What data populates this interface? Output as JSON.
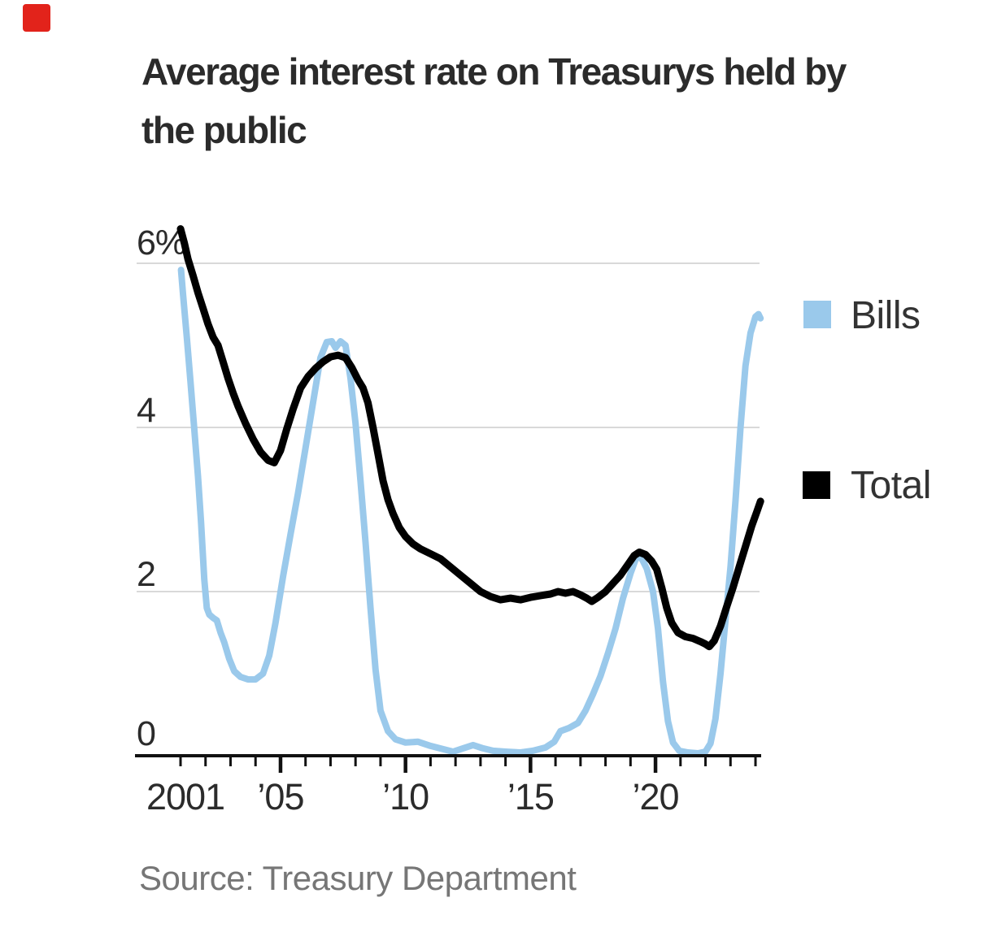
{
  "marker": {
    "color": "#e2231b"
  },
  "title": {
    "line1": "Average interest rate on Treasurys held by",
    "line2": "the public",
    "full": "Average interest rate on Treasurys held by the public"
  },
  "source_note": "Source: Treasury Department",
  "legend": [
    {
      "label": "Bills",
      "color": "#9ac9eb"
    },
    {
      "label": "Total",
      "color": "#000000"
    }
  ],
  "chart_data": {
    "type": "line",
    "title": "Average interest rate on Treasurys held by the public",
    "ylabel": "",
    "xlabel": "",
    "grid": true,
    "legend_position": "right",
    "y_axis": {
      "unit": "percent",
      "range": [
        0,
        6.5
      ],
      "ticks": [
        {
          "label": "6%",
          "value": 6
        },
        {
          "label": "4",
          "value": 4
        },
        {
          "label": "2",
          "value": 2
        },
        {
          "label": "0",
          "value": 0
        }
      ]
    },
    "x_axis": {
      "range": [
        2001,
        2024.3
      ],
      "year_start": 2001,
      "year_end": 2024,
      "major_tick_years": [
        2005,
        2010,
        2015,
        2020
      ],
      "ticks": [
        {
          "label": "2001",
          "year": 2001
        },
        {
          "label": "’05",
          "year": 2005
        },
        {
          "label": "’10",
          "year": 2010
        },
        {
          "label": "’15",
          "year": 2015
        },
        {
          "label": "’20",
          "year": 2020
        }
      ]
    },
    "series": [
      {
        "name": "Bills",
        "color": "#9ac9eb",
        "points": [
          [
            2001.02,
            5.92
          ],
          [
            2001.1,
            5.62
          ],
          [
            2001.25,
            5.1
          ],
          [
            2001.4,
            4.55
          ],
          [
            2001.55,
            3.98
          ],
          [
            2001.7,
            3.4
          ],
          [
            2001.82,
            2.85
          ],
          [
            2001.95,
            2.15
          ],
          [
            2002.05,
            1.8
          ],
          [
            2002.15,
            1.72
          ],
          [
            2002.3,
            1.68
          ],
          [
            2002.45,
            1.65
          ],
          [
            2002.6,
            1.5
          ],
          [
            2002.75,
            1.38
          ],
          [
            2002.95,
            1.18
          ],
          [
            2003.15,
            1.03
          ],
          [
            2003.4,
            0.96
          ],
          [
            2003.7,
            0.93
          ],
          [
            2004.0,
            0.93
          ],
          [
            2004.3,
            1.0
          ],
          [
            2004.55,
            1.22
          ],
          [
            2004.8,
            1.62
          ],
          [
            2005.1,
            2.18
          ],
          [
            2005.4,
            2.7
          ],
          [
            2005.7,
            3.2
          ],
          [
            2006.0,
            3.75
          ],
          [
            2006.3,
            4.3
          ],
          [
            2006.6,
            4.85
          ],
          [
            2006.85,
            5.04
          ],
          [
            2007.05,
            5.05
          ],
          [
            2007.2,
            4.97
          ],
          [
            2007.4,
            5.05
          ],
          [
            2007.6,
            5.0
          ],
          [
            2007.8,
            4.6
          ],
          [
            2008.0,
            4.05
          ],
          [
            2008.2,
            3.35
          ],
          [
            2008.4,
            2.6
          ],
          [
            2008.6,
            1.8
          ],
          [
            2008.8,
            1.05
          ],
          [
            2009.0,
            0.55
          ],
          [
            2009.3,
            0.3
          ],
          [
            2009.6,
            0.2
          ],
          [
            2010.0,
            0.16
          ],
          [
            2010.5,
            0.17
          ],
          [
            2011.0,
            0.12
          ],
          [
            2011.5,
            0.08
          ],
          [
            2011.9,
            0.05
          ],
          [
            2012.3,
            0.09
          ],
          [
            2012.7,
            0.13
          ],
          [
            2013.1,
            0.09
          ],
          [
            2013.5,
            0.06
          ],
          [
            2014.0,
            0.05
          ],
          [
            2014.6,
            0.04
          ],
          [
            2015.1,
            0.06
          ],
          [
            2015.6,
            0.1
          ],
          [
            2015.95,
            0.17
          ],
          [
            2016.2,
            0.3
          ],
          [
            2016.55,
            0.34
          ],
          [
            2016.9,
            0.4
          ],
          [
            2017.2,
            0.55
          ],
          [
            2017.5,
            0.75
          ],
          [
            2017.8,
            0.97
          ],
          [
            2018.1,
            1.25
          ],
          [
            2018.4,
            1.55
          ],
          [
            2018.7,
            1.92
          ],
          [
            2019.0,
            2.22
          ],
          [
            2019.25,
            2.43
          ],
          [
            2019.45,
            2.4
          ],
          [
            2019.65,
            2.28
          ],
          [
            2019.9,
            2.0
          ],
          [
            2020.1,
            1.55
          ],
          [
            2020.3,
            0.9
          ],
          [
            2020.5,
            0.42
          ],
          [
            2020.7,
            0.16
          ],
          [
            2020.95,
            0.06
          ],
          [
            2021.3,
            0.04
          ],
          [
            2021.7,
            0.03
          ],
          [
            2022.0,
            0.05
          ],
          [
            2022.2,
            0.15
          ],
          [
            2022.4,
            0.45
          ],
          [
            2022.6,
            1.0
          ],
          [
            2022.8,
            1.65
          ],
          [
            2023.0,
            2.3
          ],
          [
            2023.2,
            3.1
          ],
          [
            2023.4,
            4.0
          ],
          [
            2023.6,
            4.75
          ],
          [
            2023.8,
            5.15
          ],
          [
            2024.0,
            5.35
          ],
          [
            2024.12,
            5.38
          ],
          [
            2024.2,
            5.33
          ]
        ]
      },
      {
        "name": "Total",
        "color": "#000000",
        "points": [
          [
            2001.0,
            6.42
          ],
          [
            2001.15,
            6.25
          ],
          [
            2001.3,
            6.05
          ],
          [
            2001.5,
            5.85
          ],
          [
            2001.7,
            5.64
          ],
          [
            2001.9,
            5.45
          ],
          [
            2002.1,
            5.26
          ],
          [
            2002.3,
            5.1
          ],
          [
            2002.5,
            5.0
          ],
          [
            2002.7,
            4.8
          ],
          [
            2002.9,
            4.6
          ],
          [
            2003.1,
            4.42
          ],
          [
            2003.3,
            4.26
          ],
          [
            2003.6,
            4.05
          ],
          [
            2003.9,
            3.86
          ],
          [
            2004.2,
            3.7
          ],
          [
            2004.5,
            3.6
          ],
          [
            2004.75,
            3.57
          ],
          [
            2005.0,
            3.72
          ],
          [
            2005.25,
            3.98
          ],
          [
            2005.5,
            4.22
          ],
          [
            2005.8,
            4.48
          ],
          [
            2006.1,
            4.62
          ],
          [
            2006.4,
            4.72
          ],
          [
            2006.7,
            4.8
          ],
          [
            2007.0,
            4.86
          ],
          [
            2007.3,
            4.88
          ],
          [
            2007.6,
            4.85
          ],
          [
            2007.85,
            4.73
          ],
          [
            2008.1,
            4.58
          ],
          [
            2008.3,
            4.48
          ],
          [
            2008.5,
            4.3
          ],
          [
            2008.7,
            4.0
          ],
          [
            2008.9,
            3.68
          ],
          [
            2009.1,
            3.35
          ],
          [
            2009.3,
            3.12
          ],
          [
            2009.5,
            2.95
          ],
          [
            2009.75,
            2.78
          ],
          [
            2010.0,
            2.67
          ],
          [
            2010.3,
            2.58
          ],
          [
            2010.6,
            2.52
          ],
          [
            2011.0,
            2.46
          ],
          [
            2011.4,
            2.4
          ],
          [
            2011.8,
            2.3
          ],
          [
            2012.2,
            2.2
          ],
          [
            2012.6,
            2.1
          ],
          [
            2013.0,
            2.0
          ],
          [
            2013.4,
            1.94
          ],
          [
            2013.8,
            1.9
          ],
          [
            2014.2,
            1.92
          ],
          [
            2014.6,
            1.9
          ],
          [
            2015.0,
            1.93
          ],
          [
            2015.4,
            1.95
          ],
          [
            2015.8,
            1.97
          ],
          [
            2016.1,
            2.0
          ],
          [
            2016.4,
            1.98
          ],
          [
            2016.7,
            2.0
          ],
          [
            2017.0,
            1.96
          ],
          [
            2017.25,
            1.92
          ],
          [
            2017.45,
            1.88
          ],
          [
            2017.7,
            1.93
          ],
          [
            2018.0,
            2.0
          ],
          [
            2018.3,
            2.1
          ],
          [
            2018.6,
            2.2
          ],
          [
            2018.9,
            2.33
          ],
          [
            2019.15,
            2.44
          ],
          [
            2019.35,
            2.48
          ],
          [
            2019.6,
            2.45
          ],
          [
            2019.85,
            2.37
          ],
          [
            2020.05,
            2.27
          ],
          [
            2020.25,
            2.05
          ],
          [
            2020.45,
            1.8
          ],
          [
            2020.65,
            1.62
          ],
          [
            2020.9,
            1.5
          ],
          [
            2021.2,
            1.45
          ],
          [
            2021.5,
            1.43
          ],
          [
            2021.8,
            1.39
          ],
          [
            2022.0,
            1.36
          ],
          [
            2022.15,
            1.33
          ],
          [
            2022.35,
            1.4
          ],
          [
            2022.6,
            1.58
          ],
          [
            2022.85,
            1.82
          ],
          [
            2023.1,
            2.05
          ],
          [
            2023.35,
            2.3
          ],
          [
            2023.6,
            2.55
          ],
          [
            2023.85,
            2.8
          ],
          [
            2024.05,
            2.97
          ],
          [
            2024.2,
            3.1
          ]
        ]
      }
    ]
  }
}
